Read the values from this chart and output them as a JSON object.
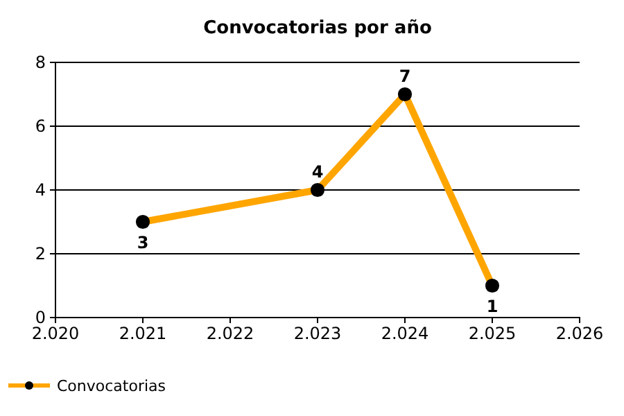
{
  "chart_data": {
    "type": "line",
    "title": "Convocatorias por año",
    "x": [
      2021,
      2023,
      2024,
      2025
    ],
    "series": [
      {
        "name": "Convocatorias",
        "color": "#ffa500",
        "values": [
          3,
          4,
          7,
          1
        ]
      }
    ],
    "xlim": [
      2020,
      2026
    ],
    "xticks": [
      {
        "value": 2020,
        "label": "2.020"
      },
      {
        "value": 2021,
        "label": "2.021"
      },
      {
        "value": 2022,
        "label": "2.022"
      },
      {
        "value": 2023,
        "label": "2.023"
      },
      {
        "value": 2024,
        "label": "2.024"
      },
      {
        "value": 2025,
        "label": "2.025"
      },
      {
        "value": 2026,
        "label": "2.026"
      }
    ],
    "ylim": [
      0,
      8
    ],
    "yticks": [
      0,
      2,
      4,
      6,
      8
    ],
    "grid": "y",
    "legend": "bottom left",
    "marker": "circle",
    "line_style": "solid",
    "data_labels": true
  }
}
